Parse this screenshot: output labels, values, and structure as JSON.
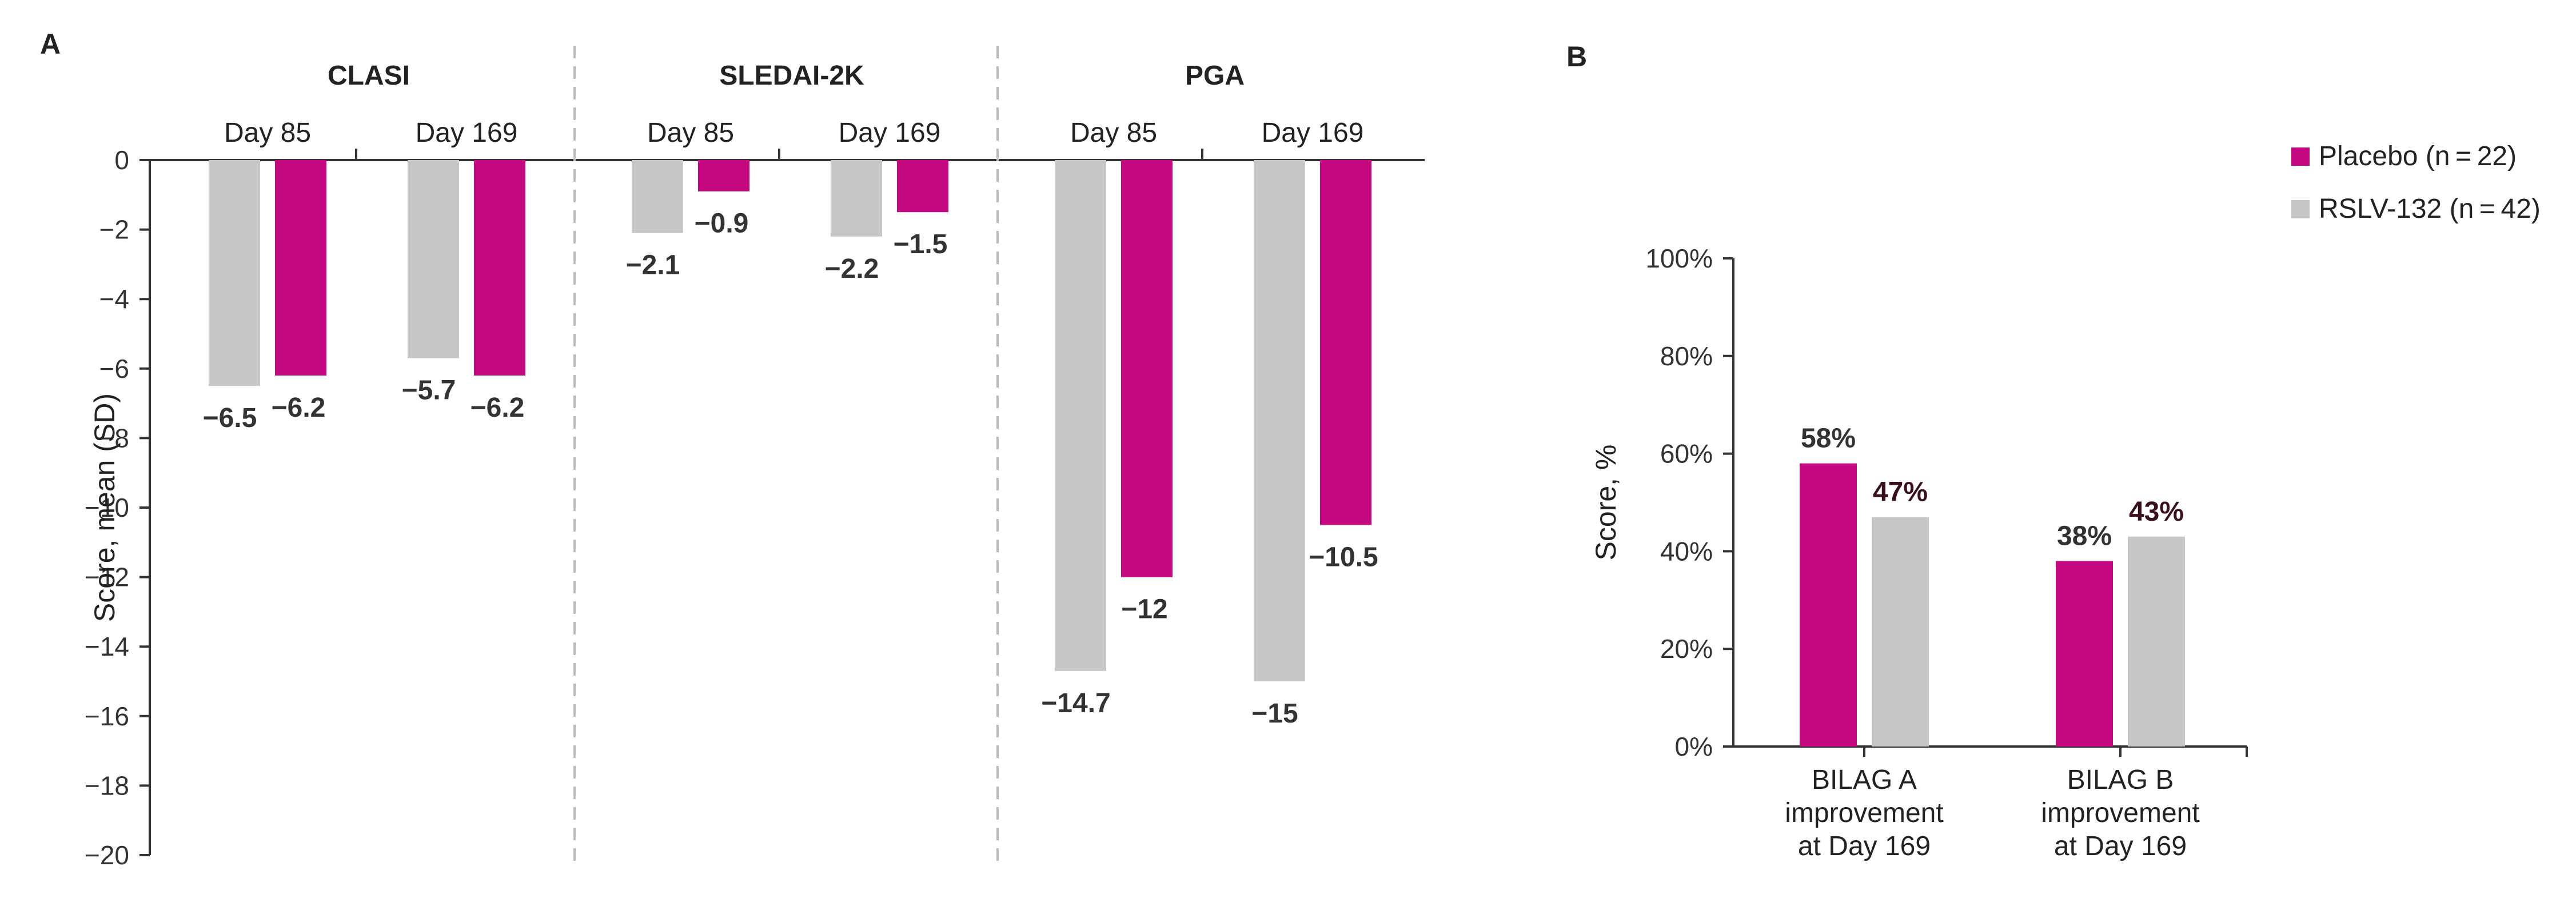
{
  "chart_data": [
    {
      "id": "A",
      "type": "bar",
      "panel_label": "A",
      "ylabel": "Score, mean (SD)",
      "ylim": [
        -20,
        0
      ],
      "yticks": [
        0,
        -2,
        -4,
        -6,
        -8,
        -10,
        -12,
        -14,
        -16,
        -18,
        -20
      ],
      "ytick_labels": [
        "0",
        "−2",
        "−4",
        "−6",
        "−8",
        "−10",
        "−12",
        "−14",
        "−16",
        "−18",
        "−20"
      ],
      "groups": [
        {
          "name": "CLASI",
          "days": [
            {
              "day": "Day 85",
              "rslv": -6.5,
              "placebo": -6.2,
              "rslv_label": "−6.5",
              "placebo_label": "−6.2"
            },
            {
              "day": "Day 169",
              "rslv": -5.7,
              "placebo": -6.2,
              "rslv_label": "−5.7",
              "placebo_label": "−6.2"
            }
          ]
        },
        {
          "name": "SLEDAI-2K",
          "days": [
            {
              "day": "Day 85",
              "rslv": -2.1,
              "placebo": -0.9,
              "rslv_label": "−2.1",
              "placebo_label": "−0.9"
            },
            {
              "day": "Day 169",
              "rslv": -2.2,
              "placebo": -1.5,
              "rslv_label": "−2.2",
              "placebo_label": "−1.5"
            }
          ]
        },
        {
          "name": "PGA",
          "days": [
            {
              "day": "Day 85",
              "rslv": -14.7,
              "placebo": -12,
              "rslv_label": "−14.7",
              "placebo_label": "−12"
            },
            {
              "day": "Day 169",
              "rslv": -15,
              "placebo": -10.5,
              "rslv_label": "−15",
              "placebo_label": "−10.5"
            }
          ]
        }
      ]
    },
    {
      "id": "B",
      "type": "bar",
      "panel_label": "B",
      "ylabel": "Score, %",
      "ylim": [
        0,
        100
      ],
      "yticks": [
        0,
        20,
        40,
        60,
        80,
        100
      ],
      "ytick_labels": [
        "0%",
        "20%",
        "40%",
        "60%",
        "80%",
        "100%"
      ],
      "categories": [
        {
          "lines": [
            "BILAG A",
            "improvement",
            "at Day 169"
          ],
          "placebo": 58,
          "rslv": 47,
          "placebo_label": "58%",
          "rslv_label": "47%"
        },
        {
          "lines": [
            "BILAG B",
            "improvement",
            "at Day 169"
          ],
          "placebo": 38,
          "rslv": 43,
          "placebo_label": "38%",
          "rslv_label": "43%"
        }
      ]
    }
  ],
  "legend": {
    "placement": "top-right",
    "items": [
      {
        "key": "placebo",
        "label": "Placebo (n = 22)"
      },
      {
        "key": "rslv",
        "label": "RSLV-132 (n = 42)"
      }
    ]
  },
  "colors": {
    "placebo": "#C4087F",
    "rslv": "#C6C6C6",
    "axis": "#333333",
    "divider": "#BBBBBB",
    "label_a": "#333333",
    "label_b_rslv": "#3A1020"
  }
}
